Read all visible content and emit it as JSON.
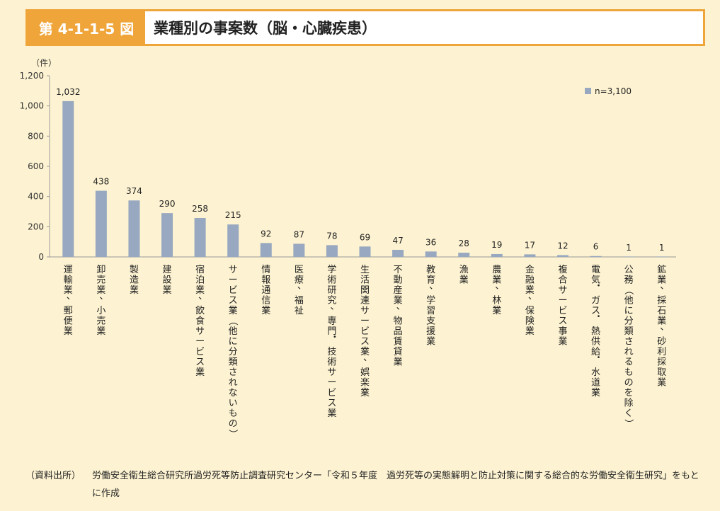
{
  "title": {
    "label": "第 4-1-1-5 図",
    "text": "業種別の事案数（脳・心臓疾患）"
  },
  "source": {
    "label": "（資料出所）",
    "text": "労働安全衛生総合研究所過労死等防止調査研究センター「令和５年度　過労死等の実態解明と防止対策に関する総合的な労働安全衛生研究」をもとに作成"
  },
  "colors": {
    "bar": "#98a8c0",
    "accent": "#f0a53a",
    "background": "#fdf3d2"
  },
  "chart_data": {
    "type": "bar",
    "ylabel": "（件）",
    "ylim": [
      0,
      1200
    ],
    "yticks": [
      "0",
      "200",
      "400",
      "600",
      "800",
      "1,000",
      "1,200"
    ],
    "grid": false,
    "legend": {
      "position": "top-right",
      "entries": [
        "n=3,100"
      ]
    },
    "categories": [
      "運輸業、郵便業",
      "卸売業、小売業",
      "製造業",
      "建設業",
      "宿泊業、飲食サービス業",
      "サービス業（他に分類されないもの）",
      "情報通信業",
      "医療、福祉",
      "学術研究、専門・技術サービス業",
      "生活関連サービス業、娯楽業",
      "不動産業、物品賃貸業",
      "教育、学習支援業",
      "漁業",
      "農業、林業",
      "金融業、保険業",
      "複合サービス事業",
      "電気・ガス・熱供給・水道業",
      "公務（他に分類されるものを除く）",
      "鉱業、採石業、砂利採取業"
    ],
    "values": [
      1032,
      438,
      374,
      290,
      258,
      215,
      92,
      87,
      78,
      69,
      47,
      36,
      28,
      19,
      17,
      12,
      6,
      1,
      1
    ],
    "value_labels": [
      "1,032",
      "438",
      "374",
      "290",
      "258",
      "215",
      "92",
      "87",
      "78",
      "69",
      "47",
      "36",
      "28",
      "19",
      "17",
      "12",
      "6",
      "1",
      "1"
    ]
  }
}
